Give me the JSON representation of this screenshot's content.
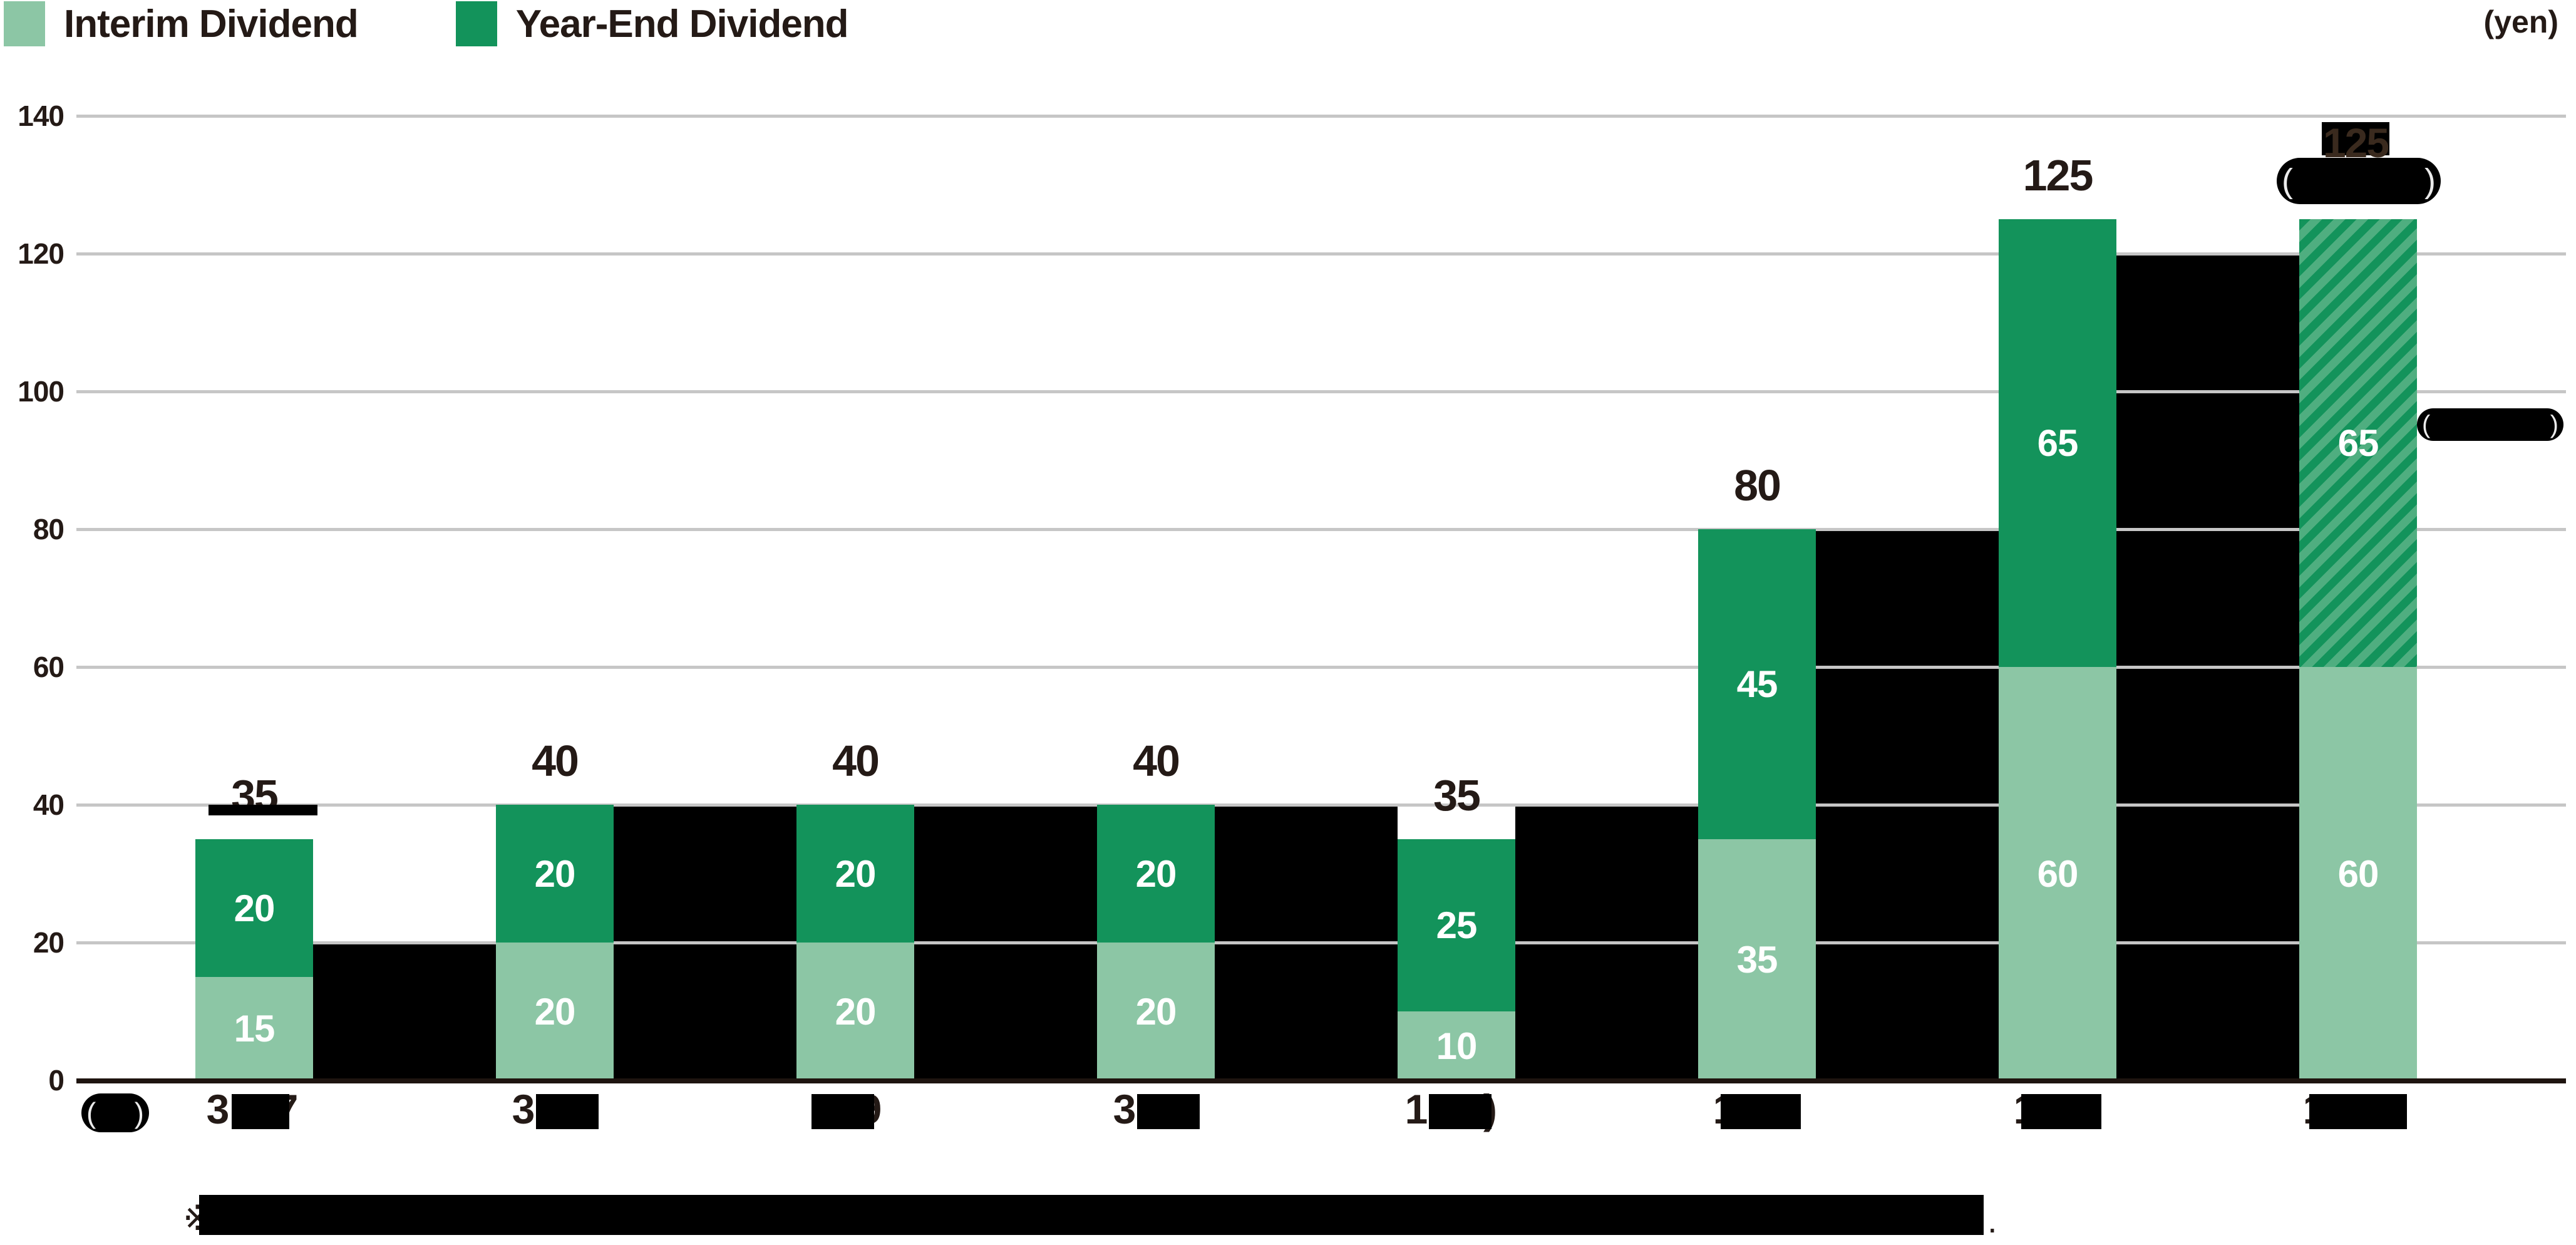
{
  "page": {
    "unit_label": "(yen)"
  },
  "legend": {
    "items": [
      {
        "label": "Interim Dividend",
        "color": "#8CC6A5"
      },
      {
        "label": "Year-End Dividend",
        "color": "#13935B"
      }
    ]
  },
  "chart_data": {
    "type": "bar",
    "stacked": true,
    "title": "",
    "unit_label": "(yen)",
    "ylim": [
      0,
      140
    ],
    "yticks": [
      0,
      20,
      40,
      60,
      80,
      100,
      120,
      140
    ],
    "grid": true,
    "legend_position": "top-left",
    "categories_visible_fragments": [
      {
        "left": "3",
        "right": "7"
      },
      {
        "left": "3",
        "right": ""
      },
      {
        "left": "",
        "right": "9"
      },
      {
        "left": "3",
        "right": ""
      },
      {
        "left": "1",
        "right": ")"
      },
      {
        "left": "1",
        "right": ""
      },
      {
        "left": "1",
        "right": ""
      },
      {
        "left": "1",
        "right": ""
      }
    ],
    "series": [
      {
        "name": "Interim Dividend",
        "color": "#8CC6A5",
        "values": [
          15,
          20,
          20,
          20,
          10,
          35,
          60,
          60
        ]
      },
      {
        "name": "Year-End Dividend",
        "color": "#13935B",
        "values": [
          20,
          20,
          20,
          20,
          25,
          45,
          65,
          65
        ]
      }
    ],
    "totals": [
      35,
      40,
      40,
      40,
      35,
      80,
      125,
      125
    ],
    "segment_labels_shown": true,
    "hatched": {
      "bar_index": 7,
      "segment": "Year-End Dividend"
    },
    "redacted_gap_boxes_top_values": [
      20,
      40,
      40,
      40,
      40,
      80,
      120
    ],
    "colors": {
      "interim": "#8CC6A5",
      "year_end": "#13935B",
      "hatch_light": "#4FAE80",
      "gridline": "#C6C6C6",
      "axis": "#1E140F",
      "text": "#241A16",
      "redaction": "#000000"
    }
  },
  "annotations": {
    "bar8_top_value": "125",
    "origin_pill_present": true,
    "bar8_pill_present": true,
    "right_pill_present": true,
    "bar1_label_strip_present": true
  },
  "footnote": {
    "marker": "※",
    "trailing": "."
  }
}
